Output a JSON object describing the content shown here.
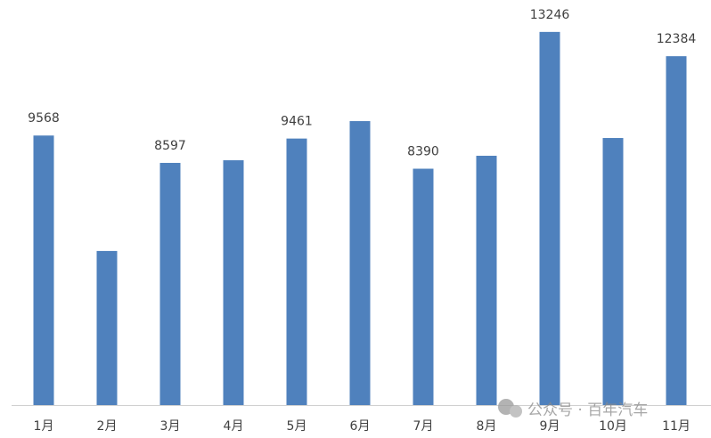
{
  "chart_data": {
    "type": "bar",
    "categories": [
      "1月",
      "2月",
      "3月",
      "4月",
      "5月",
      "6月",
      "7月",
      "8月",
      "9月",
      "10月",
      "11月"
    ],
    "values": [
      9568,
      5470,
      8597,
      8690,
      9461,
      10080,
      8390,
      8850,
      13246,
      9480,
      12384
    ],
    "value_labels": [
      "9568",
      null,
      "8597",
      null,
      "9461",
      null,
      "8390",
      null,
      "13246",
      null,
      "12384"
    ],
    "color": "#4f81bd",
    "ylim": [
      0,
      14000
    ],
    "watermark": "公众号 · 百年汽车"
  }
}
